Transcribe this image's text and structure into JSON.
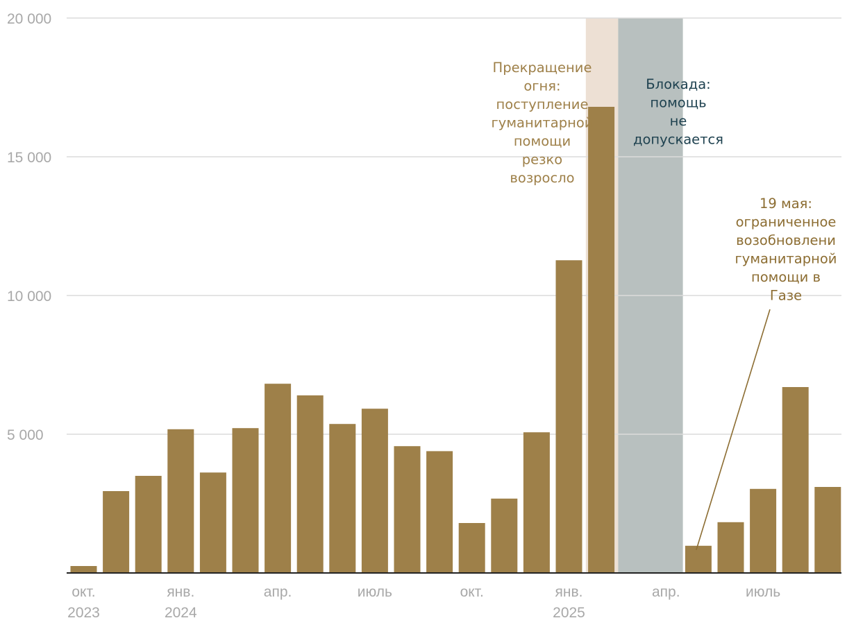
{
  "chart_data": {
    "type": "bar",
    "ylim": [
      0,
      20000
    ],
    "y_ticks": [
      {
        "value": 5000,
        "label": "5 000"
      },
      {
        "value": 10000,
        "label": "10 000"
      },
      {
        "value": 15000,
        "label": "15 000"
      },
      {
        "value": 20000,
        "label": "20 000"
      }
    ],
    "months": [
      "2023-10",
      "2023-11",
      "2023-12",
      "2024-01",
      "2024-02",
      "2024-03",
      "2024-04",
      "2024-05",
      "2024-06",
      "2024-07",
      "2024-08",
      "2024-09",
      "2024-10",
      "2024-11",
      "2024-12",
      "2025-01",
      "2025-02",
      "2025-03",
      "2025-04",
      "2025-05",
      "2025-06",
      "2025-07",
      "2025-08",
      "2025-09"
    ],
    "values": [
      250,
      2950,
      3500,
      5180,
      3620,
      5220,
      6820,
      6400,
      5370,
      5920,
      4570,
      4390,
      1800,
      2680,
      5070,
      11270,
      16800,
      null,
      null,
      980,
      1830,
      3030,
      6700,
      3100
    ],
    "x_labels": [
      {
        "index": 0,
        "line1": "окт.",
        "line2": "2023"
      },
      {
        "index": 3,
        "line1": "янв.",
        "line2": "2024"
      },
      {
        "index": 6,
        "line1": "апр.",
        "line2": ""
      },
      {
        "index": 9,
        "line1": "июль",
        "line2": ""
      },
      {
        "index": 12,
        "line1": "окт.",
        "line2": ""
      },
      {
        "index": 15,
        "line1": "янв.",
        "line2": "2025"
      },
      {
        "index": 18,
        "line1": "апр.",
        "line2": ""
      },
      {
        "index": 21,
        "line1": "июль",
        "line2": ""
      }
    ],
    "bar_color": "#9e8049",
    "shaded_periods": [
      {
        "name": "ceasefire",
        "start_index": 16,
        "end_index": 16,
        "color": "#ede0d4"
      },
      {
        "name": "blockade",
        "start_index": 17,
        "end_index": 18,
        "color": "#b8c0bf"
      }
    ],
    "annotations": {
      "ceasefire": {
        "lines": [
          "Прекращение",
          "огня:",
          "поступление",
          "гуманитарной",
          "помощи",
          "резко",
          "возросло"
        ],
        "color": "#9e8049"
      },
      "blockade": {
        "lines": [
          "Блокада:",
          "помощь",
          "не",
          "допускается"
        ],
        "color": "#1f4250"
      },
      "may19": {
        "lines": [
          "19 мая:",
          "ограниченное",
          "возобновлени",
          "гуманитарной",
          "помощи в",
          "Газе"
        ],
        "color": "#8c6d32",
        "target_index": 19
      }
    }
  }
}
